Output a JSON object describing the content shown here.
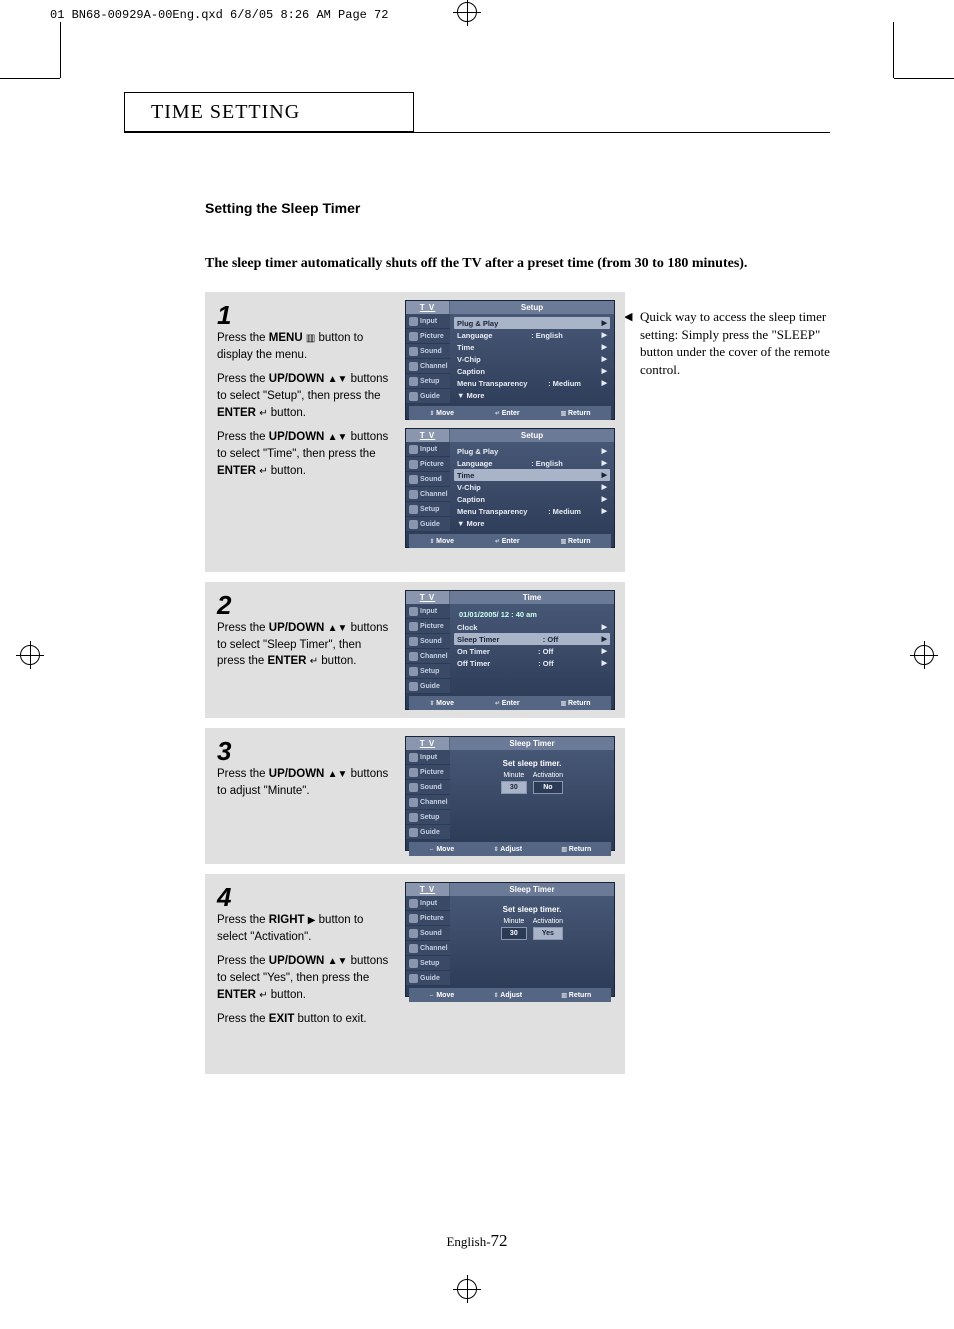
{
  "print_header": "01 BN68-00929A-00Eng.qxd  6/8/05 8:26 AM  Page 72",
  "chapter_title": "TIME SETTING",
  "section_title": "Setting the Sleep Timer",
  "intro": "The sleep timer automatically shuts off the TV after a preset time (from 30 to 180 minutes).",
  "side_note": "Quick way to access the sleep timer setting: Simply press the \"SLEEP\" button under the cover of the remote control.",
  "footer_label": "English-",
  "footer_page": "72",
  "steps": {
    "s1": {
      "num": "1",
      "p1a": "Press the ",
      "p1b": "MENU",
      "p1c": " button to display the menu.",
      "p2a": "Press the ",
      "p2b": "UP/DOWN",
      "p2c": " buttons to select \"Setup\", then press the ",
      "p2d": "ENTER",
      "p2e": " button.",
      "p3a": "Press the ",
      "p3b": "UP/DOWN",
      "p3c": " buttons to select \"Time\", then press the ",
      "p3d": "ENTER",
      "p3e": " button."
    },
    "s2": {
      "num": "2",
      "p1a": "Press the ",
      "p1b": "UP/DOWN",
      "p1c": " buttons to select \"Sleep Timer\", then press the ",
      "p1d": "ENTER",
      "p1e": " button."
    },
    "s3": {
      "num": "3",
      "p1a": "Press the ",
      "p1b": "UP/DOWN",
      "p1c": " buttons to adjust \"Minute\"."
    },
    "s4": {
      "num": "4",
      "p1a": "Press the ",
      "p1b": "RIGHT",
      "p1c": " button to select \"Activation\".",
      "p2a": "Press the ",
      "p2b": "UP/DOWN",
      "p2c": " buttons to select \"Yes\", then press the ",
      "p2d": "ENTER",
      "p2e": " button.",
      "p3a": "Press the ",
      "p3b": "EXIT",
      "p3c": " button to exit."
    }
  },
  "osd": {
    "tv": "T V",
    "sidebar": [
      "Input",
      "Picture",
      "Sound",
      "Channel",
      "Setup",
      "Guide"
    ],
    "footer_move": "Move",
    "footer_adjust": "Adjust",
    "footer_enter": "Enter",
    "footer_return": "Return",
    "setup": {
      "title": "Setup",
      "rows": [
        {
          "l": "Plug & Play",
          "r": ""
        },
        {
          "l": "Language",
          "r": ": English"
        },
        {
          "l": "Time",
          "r": ""
        },
        {
          "l": "V-Chip",
          "r": ""
        },
        {
          "l": "Caption",
          "r": ""
        },
        {
          "l": "Menu Transparency",
          "r": ": Medium"
        },
        {
          "l": "▼ More",
          "r": ""
        }
      ],
      "hl_a": 0,
      "hl_b": 2
    },
    "time": {
      "title": "Time",
      "date": "01/01/2005/ 12 : 40 am",
      "rows": [
        {
          "l": "Clock",
          "r": ""
        },
        {
          "l": "Sleep Timer",
          "r": ": Off"
        },
        {
          "l": "On Timer",
          "r": ": Off"
        },
        {
          "l": "Off Timer",
          "r": ": Off"
        }
      ],
      "hl": 1
    },
    "sleep": {
      "title": "Sleep Timer",
      "msg": "Set sleep timer.",
      "minute_label": "Minute",
      "activation_label": "Activation",
      "s3_minute": "30",
      "s3_act": "No",
      "s4_minute": "30",
      "s4_act": "Yes"
    }
  },
  "glyphs": {
    "menu_icon": "▥",
    "updown": "▲▼",
    "enter": "↵",
    "right": "▶"
  }
}
